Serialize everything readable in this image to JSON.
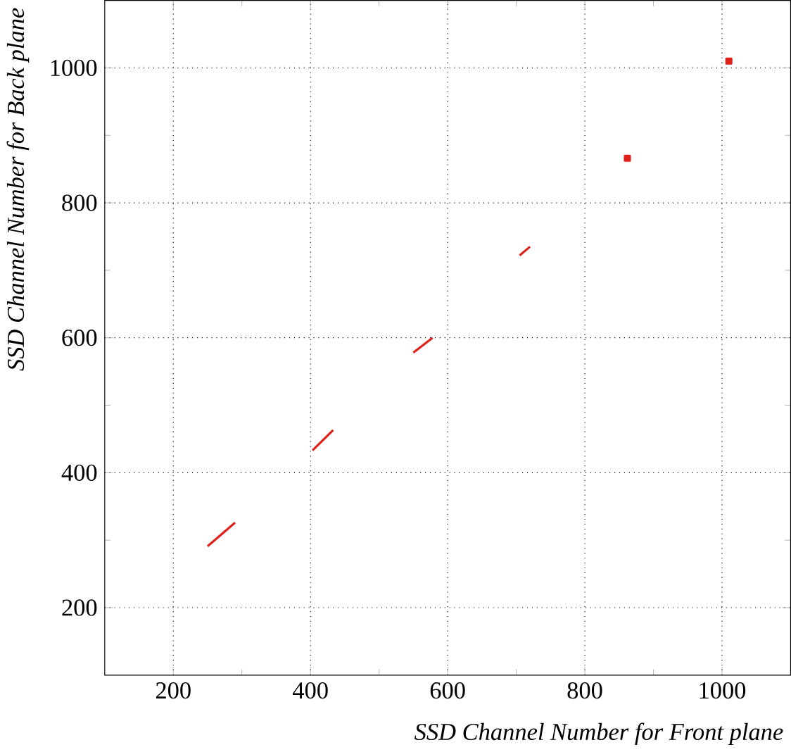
{
  "chart_data": {
    "type": "line",
    "xlabel": "SSD Channel Number for Front plane",
    "ylabel": "SSD Channel Number for Back plane",
    "xlim": [
      100,
      1100
    ],
    "ylim": [
      100,
      1100
    ],
    "xticks": [
      200,
      400,
      600,
      800,
      1000
    ],
    "yticks": [
      200,
      400,
      600,
      800,
      1000
    ],
    "grid": true,
    "marker": "none",
    "series": [
      {
        "color": "#e0201b",
        "x": [
          250,
          290
        ],
        "values": [
          291,
          326
        ]
      },
      {
        "color": "#e0201b",
        "x": [
          403,
          433
        ],
        "values": [
          433,
          463
        ]
      },
      {
        "color": "#e0201b",
        "x": [
          550,
          578
        ],
        "values": [
          578,
          600
        ]
      },
      {
        "color": "#e0201b",
        "x": [
          705,
          720
        ],
        "values": [
          722,
          735
        ]
      },
      {
        "type": "scatter",
        "marker": "square",
        "color": "#e0201b",
        "x": [
          862
        ],
        "values": [
          866
        ]
      },
      {
        "type": "scatter",
        "marker": "square",
        "color": "#e0201b",
        "x": [
          1010
        ],
        "values": [
          1010
        ]
      }
    ]
  }
}
